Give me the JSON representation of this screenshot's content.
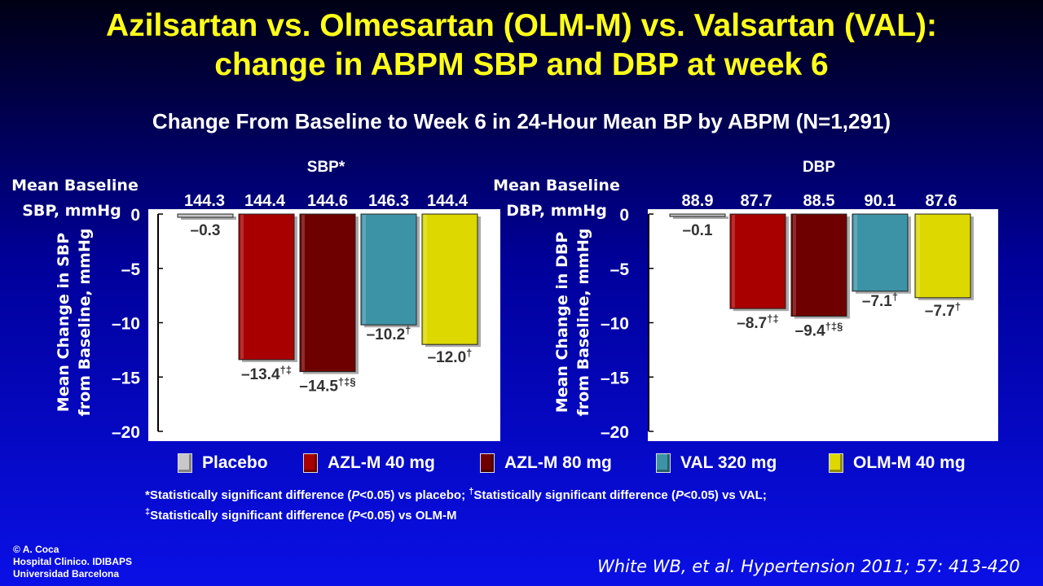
{
  "title_line1": "Azilsartan vs. Olmesartan (OLM-M) vs. Valsartan (VAL):",
  "title_line2": "change in ABPM SBP and DBP at week 6",
  "subtitle": "Change From Baseline to Week 6 in 24-Hour Mean BP by ABPM (N=1,291)",
  "colors": {
    "placebo": "#c8c8c8",
    "azl40": "#a80000",
    "azl80": "#6e0000",
    "val320": "#3d93a6",
    "olm40": "#dcd800",
    "title": "#ffff1a"
  },
  "legend": [
    {
      "label": "Placebo",
      "color": "#c8c8c8"
    },
    {
      "label": "AZL-M 40 mg",
      "color": "#a80000"
    },
    {
      "label": "AZL-M 80 mg",
      "color": "#6e0000"
    },
    {
      "label": "VAL 320 mg",
      "color": "#3d93a6"
    },
    {
      "label": "OLM-M 40 mg",
      "color": "#dcd800"
    }
  ],
  "chart_data": [
    {
      "type": "bar",
      "title": "SBP*",
      "baseline_label_line1": "Mean Baseline",
      "baseline_label_line2": "SBP, mmHg",
      "ylabel_line1": "Mean Change in SBP",
      "ylabel_line2": "from Baseline, mmHg",
      "categories": [
        "Placebo",
        "AZL-M 40 mg",
        "AZL-M 80 mg",
        "VAL 320 mg",
        "OLM-M 40 mg"
      ],
      "baselines": [
        "144.3",
        "144.4",
        "144.6",
        "146.3",
        "144.4"
      ],
      "values": [
        -0.3,
        -13.4,
        -14.5,
        -10.2,
        -12.0
      ],
      "value_labels": [
        "–0.3",
        "–13.4",
        "–14.5",
        "–10.2",
        "–12.0"
      ],
      "value_superscripts": [
        "",
        "†‡",
        "†‡§",
        "†",
        "†"
      ],
      "ylim": [
        -20,
        0
      ],
      "yticks": [
        0,
        -5,
        -10,
        -15,
        -20
      ],
      "ytick_labels": [
        "0",
        "–5",
        "–10",
        "–15",
        "–20"
      ]
    },
    {
      "type": "bar",
      "title": "DBP",
      "baseline_label_line1": "Mean Baseline",
      "baseline_label_line2": "DBP, mmHg",
      "ylabel_line1": "Mean Change in DBP",
      "ylabel_line2": "from Baseline, mmHg",
      "categories": [
        "Placebo",
        "AZL-M 40 mg",
        "AZL-M 80 mg",
        "VAL 320 mg",
        "OLM-M 40 mg"
      ],
      "baselines": [
        "88.9",
        "87.7",
        "88.5",
        "90.1",
        "87.6"
      ],
      "values": [
        -0.1,
        -8.7,
        -9.4,
        -7.1,
        -7.7
      ],
      "value_labels": [
        "–0.1",
        "–8.7",
        "–9.4",
        "–7.1",
        "–7.7"
      ],
      "value_superscripts": [
        "",
        "†‡",
        "†‡§",
        "†",
        "†"
      ],
      "ylim": [
        -20,
        0
      ],
      "yticks": [
        0,
        -5,
        -10,
        -15,
        -20
      ],
      "ytick_labels": [
        "0",
        "–5",
        "–10",
        "–15",
        "–20"
      ]
    }
  ],
  "footnote_line1_parts": [
    "*Statistically significant difference (",
    "P",
    "<0.05) vs placebo; ",
    "†",
    "Statistically significant difference (",
    "P",
    "<0.05) vs VAL;"
  ],
  "footnote_line2_parts": [
    "‡",
    "Statistically significant difference (",
    "P",
    "<0.05) vs OLM-M"
  ],
  "credit": [
    "© A. Coca",
    "Hospital Clinico. IDIBAPS",
    "Universidad Barcelona"
  ],
  "citation": "White WB, et al. Hypertension 2011; 57: 413-420"
}
